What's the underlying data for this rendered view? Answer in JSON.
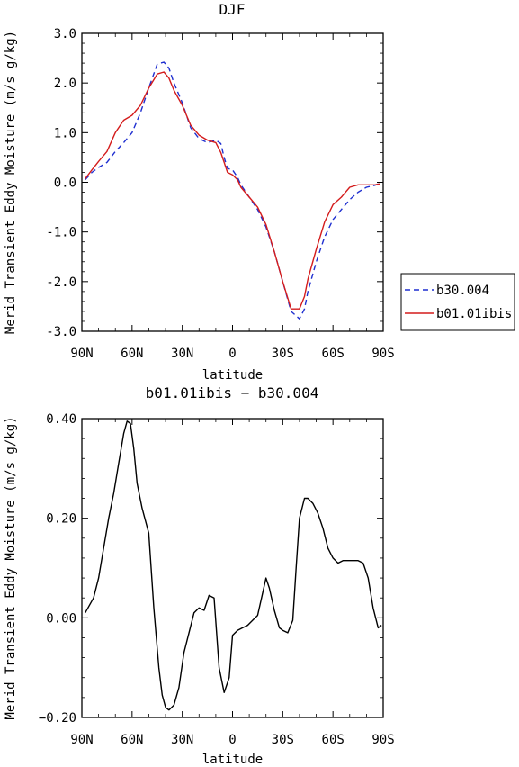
{
  "chart_data": [
    {
      "type": "line",
      "title": "DJF",
      "xlabel": "latitude",
      "ylabel": "Merid Transient Eddy Moisture (m/s g/kg)",
      "x_ticks": [
        "90N",
        "60N",
        "30N",
        "0",
        "30S",
        "60S",
        "90S"
      ],
      "y_ticks": [
        "3.0",
        "2.0",
        "1.0",
        "0.0",
        "-1.0",
        "-2.0",
        "-3.0"
      ],
      "xlim": [
        90,
        -90
      ],
      "ylim": [
        -3.0,
        3.0
      ],
      "legend_position": "right",
      "series": [
        {
          "name": "b30.004",
          "style": "dashed",
          "color": "#1f2fd0",
          "x": [
            88,
            84,
            80,
            75,
            70,
            65,
            60,
            55,
            50,
            45,
            41,
            38,
            35,
            30,
            25,
            20,
            15,
            10,
            7,
            5,
            3,
            0,
            -3,
            -5,
            -10,
            -15,
            -20,
            -25,
            -30,
            -35,
            -40,
            -43,
            -45,
            -50,
            -55,
            -60,
            -65,
            -70,
            -75,
            -80,
            -85,
            -88
          ],
          "y": [
            0.05,
            0.2,
            0.3,
            0.4,
            0.62,
            0.8,
            1.0,
            1.4,
            1.9,
            2.38,
            2.42,
            2.3,
            2.0,
            1.6,
            1.1,
            0.88,
            0.8,
            0.85,
            0.78,
            0.5,
            0.28,
            0.25,
            0.1,
            -0.05,
            -0.3,
            -0.55,
            -0.9,
            -1.4,
            -2.0,
            -2.6,
            -2.75,
            -2.55,
            -2.2,
            -1.6,
            -1.1,
            -0.75,
            -0.55,
            -0.35,
            -0.2,
            -0.1,
            -0.06,
            -0.02
          ]
        },
        {
          "name": "b01.01ibis",
          "style": "solid",
          "color": "#d41c1c",
          "x": [
            88,
            84,
            80,
            75,
            70,
            65,
            60,
            55,
            50,
            45,
            41,
            38,
            35,
            30,
            25,
            20,
            15,
            10,
            7,
            5,
            3,
            0,
            -3,
            -5,
            -10,
            -15,
            -20,
            -25,
            -30,
            -35,
            -40,
            -43,
            -45,
            -50,
            -55,
            -60,
            -65,
            -70,
            -75,
            -80,
            -85,
            -88
          ],
          "y": [
            0.07,
            0.25,
            0.42,
            0.62,
            1.0,
            1.25,
            1.35,
            1.55,
            1.9,
            2.18,
            2.22,
            2.1,
            1.85,
            1.55,
            1.15,
            0.95,
            0.85,
            0.8,
            0.6,
            0.4,
            0.2,
            0.15,
            0.05,
            -0.1,
            -0.3,
            -0.5,
            -0.85,
            -1.4,
            -2.0,
            -2.55,
            -2.55,
            -2.3,
            -1.95,
            -1.35,
            -0.8,
            -0.45,
            -0.3,
            -0.1,
            -0.05,
            -0.05,
            -0.05,
            -0.03
          ]
        }
      ]
    },
    {
      "type": "line",
      "title": "b01.01ibis − b30.004",
      "xlabel": "latitude",
      "ylabel": "Merid Transient Eddy Moisture (m/s g/kg)",
      "x_ticks": [
        "90N",
        "60N",
        "30N",
        "0",
        "30S",
        "60S",
        "90S"
      ],
      "y_ticks": [
        "0.40",
        "0.20",
        "0.00",
        "−0.20"
      ],
      "xlim": [
        90,
        -90
      ],
      "ylim": [
        -0.2,
        0.4
      ],
      "series": [
        {
          "style": "solid",
          "color": "#000000",
          "x": [
            88,
            83,
            80,
            77,
            74,
            71,
            68,
            65,
            63,
            61,
            59,
            57,
            54,
            50,
            47,
            44,
            42,
            40,
            38,
            35,
            32,
            29,
            26,
            23,
            20,
            17,
            14,
            11,
            8,
            5,
            2,
            0,
            -3,
            -6,
            -9,
            -12,
            -15,
            -18,
            -20,
            -22,
            -25,
            -28,
            -30,
            -33,
            -36,
            -38,
            -40,
            -43,
            -45,
            -48,
            -51,
            -54,
            -57,
            -60,
            -63,
            -66,
            -69,
            -72,
            -75,
            -78,
            -81,
            -84,
            -87,
            -89
          ],
          "y": [
            0.01,
            0.04,
            0.08,
            0.14,
            0.2,
            0.25,
            0.31,
            0.37,
            0.395,
            0.39,
            0.34,
            0.27,
            0.22,
            0.17,
            0.02,
            -0.1,
            -0.155,
            -0.18,
            -0.185,
            -0.175,
            -0.14,
            -0.07,
            -0.03,
            0.01,
            0.02,
            0.015,
            0.045,
            0.04,
            -0.1,
            -0.15,
            -0.12,
            -0.035,
            -0.025,
            -0.02,
            -0.015,
            -0.005,
            0.005,
            0.05,
            0.08,
            0.06,
            0.015,
            -0.02,
            -0.025,
            -0.03,
            -0.005,
            0.1,
            0.2,
            0.24,
            0.24,
            0.23,
            0.21,
            0.18,
            0.14,
            0.12,
            0.11,
            0.115,
            0.115,
            0.115,
            0.115,
            0.11,
            0.08,
            0.02,
            -0.02,
            -0.015
          ]
        }
      ]
    }
  ]
}
